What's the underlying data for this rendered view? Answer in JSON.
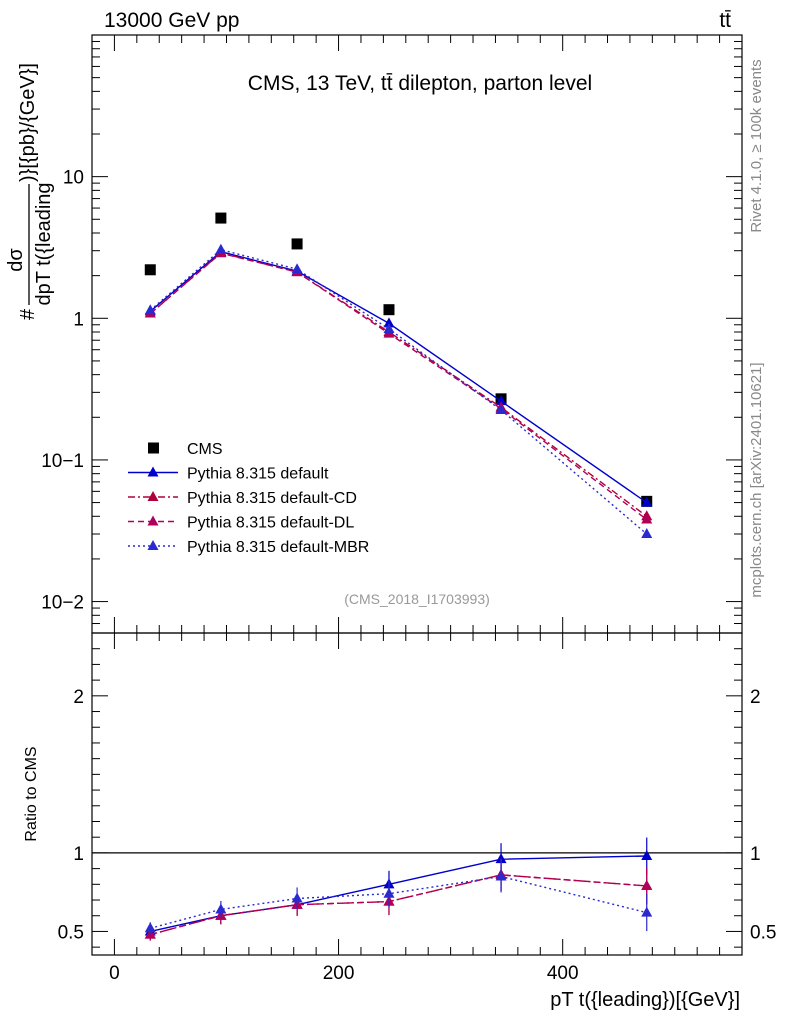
{
  "header": {
    "energy_label": "13000 GeV pp",
    "process_label": "tt̄"
  },
  "side_labels": {
    "rivet": "Rivet 4.1.0, ≥ 100k events",
    "mcplots": "mcplots.cern.ch [arXiv:2401.10621]"
  },
  "chart_data": [
    {
      "panel": "main",
      "type": "scatter",
      "title": "CMS, 13 TeV, tt̄ dilepton, parton level",
      "analysis_tag": "(CMS_2018_I1703993)",
      "ylabel_prefix": "#",
      "ylabel_numerator": "dσ",
      "ylabel_denominator": "dpT t({leading",
      "ylabel_suffix": ")}[{pb}/{GeV}]",
      "yscale": "log",
      "ylim": [
        0.006,
        100
      ],
      "xlim": [
        -20,
        560
      ],
      "yticks": [
        {
          "value": 0.01,
          "label": "10−2"
        },
        {
          "value": 0.1,
          "label": "10−1"
        },
        {
          "value": 1,
          "label": "1"
        },
        {
          "value": 10,
          "label": "10"
        }
      ],
      "x": [
        32,
        95,
        163,
        245,
        345,
        475
      ],
      "series": [
        {
          "name": "CMS",
          "color": "#000000",
          "marker": "square",
          "values": [
            2.2,
            5.1,
            3.35,
            1.15,
            0.27,
            0.051
          ]
        },
        {
          "name": "Pythia 8.315 default",
          "color": "#0000cc",
          "marker": "triangle",
          "line": "solid",
          "values": [
            1.12,
            2.95,
            2.15,
            0.92,
            0.26,
            0.05
          ]
        },
        {
          "name": "Pythia 8.315 default-CD",
          "color": "#b0003c",
          "marker": "triangle",
          "line": "dashdot",
          "values": [
            1.08,
            2.9,
            2.12,
            0.8,
            0.235,
            0.04
          ]
        },
        {
          "name": "Pythia 8.315 default-DL",
          "color": "#b0005a",
          "marker": "triangle",
          "line": "dashed",
          "values": [
            1.08,
            2.88,
            2.12,
            0.78,
            0.23,
            0.038
          ]
        },
        {
          "name": "Pythia 8.315 default-MBR",
          "color": "#2a2ad0",
          "marker": "triangle",
          "line": "dotted",
          "values": [
            1.14,
            3.05,
            2.22,
            0.84,
            0.225,
            0.03
          ]
        }
      ]
    },
    {
      "panel": "ratio",
      "type": "line",
      "ylabel": "Ratio to CMS",
      "xlabel": "pT t({leading})[{GeV}]",
      "ylim": [
        0.35,
        2.4
      ],
      "xlim": [
        -20,
        560
      ],
      "yticks": [
        {
          "value": 0.5,
          "label": "0.5"
        },
        {
          "value": 1,
          "label": "1"
        },
        {
          "value": 2,
          "label": "2"
        }
      ],
      "xticks": [
        {
          "value": 0,
          "label": "0"
        },
        {
          "value": 200,
          "label": "200"
        },
        {
          "value": 400,
          "label": "400"
        }
      ],
      "reference": 1,
      "x": [
        32,
        95,
        163,
        245,
        345,
        475
      ],
      "series": [
        {
          "name": "Pythia 8.315 default",
          "color": "#0000cc",
          "line": "solid",
          "values": [
            0.5,
            0.6,
            0.67,
            0.8,
            0.96,
            0.98
          ]
        },
        {
          "name": "Pythia 8.315 default-CD",
          "color": "#b0003c",
          "line": "dashdot",
          "values": [
            0.48,
            0.6,
            0.67,
            0.69,
            0.86,
            0.79
          ]
        },
        {
          "name": "Pythia 8.315 default-DL",
          "color": "#b0005a",
          "line": "dashed",
          "values": [
            0.48,
            0.6,
            0.67,
            0.69,
            0.86,
            0.79
          ]
        },
        {
          "name": "Pythia 8.315 default-MBR",
          "color": "#2a2ad0",
          "line": "dotted",
          "values": [
            0.52,
            0.64,
            0.71,
            0.74,
            0.85,
            0.62
          ]
        }
      ]
    }
  ]
}
